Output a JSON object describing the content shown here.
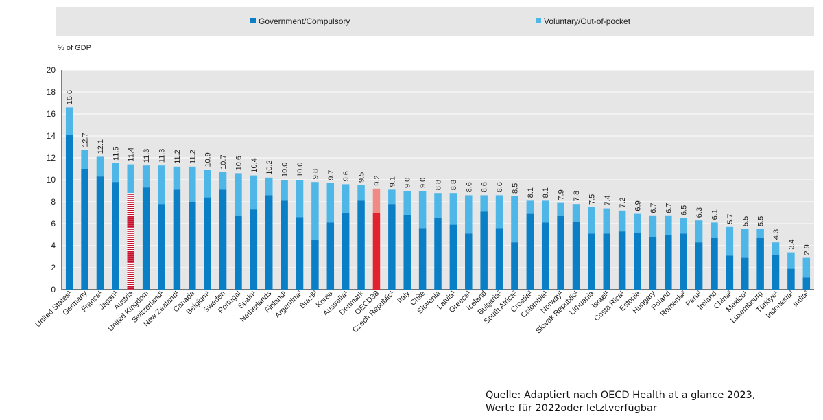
{
  "legend": {
    "government": "Government/Compulsory",
    "voluntary": "Voluntary/Out-of-pocket"
  },
  "colors": {
    "government": "#0b7fc6",
    "voluntary": "#4fb6e8",
    "highlight_government": "#e3222d",
    "highlight_voluntary": "#f08a83",
    "plot_background": "#e6e6e6"
  },
  "source_note": "Quelle: Adaptiert nach OECD Health at a glance 2023,\nWerte für 2022oder letztverfügbar",
  "chart_data": {
    "type": "bar",
    "stacked": true,
    "ylabel": "% of GDP",
    "ylim": [
      0,
      20
    ],
    "yticks": [
      0,
      2,
      4,
      6,
      8,
      10,
      12,
      14,
      16,
      18,
      20
    ],
    "grid": true,
    "legend_position": "top",
    "categories": [
      "United States¹",
      "Germany",
      "France¹",
      "Japan¹",
      "Austria",
      "United Kingdom",
      "Switzerland¹",
      "New Zealand¹",
      "Canada",
      "Belgium¹",
      "Sweden",
      "Portugal",
      "Spain¹",
      "Netherlands",
      "Finland¹",
      "Argentina³",
      "Brazil³",
      "Korea",
      "Australia¹",
      "Denmark",
      "OECD38",
      "Czech Republic¹",
      "Italy",
      "Chile",
      "Slovenia",
      "Latvia¹",
      "Greece¹",
      "Iceland",
      "Bulgaria²",
      "South Africa³",
      "Croatia²",
      "Colombia¹",
      "Norway¹",
      "Slovak Republic¹",
      "Lithuania",
      "Israel¹",
      "Costa Rica¹",
      "Estonia",
      "Hungary",
      "Poland",
      "Romania²",
      "Peru³",
      "Ireland",
      "China²",
      "Mexico¹",
      "Luxembourg",
      "Türkiye¹",
      "Indonesia³",
      "India³"
    ],
    "totals": [
      16.6,
      12.7,
      12.1,
      11.5,
      11.4,
      11.3,
      11.3,
      11.2,
      11.2,
      10.9,
      10.7,
      10.6,
      10.4,
      10.2,
      10.0,
      10.0,
      9.8,
      9.7,
      9.6,
      9.5,
      9.2,
      9.1,
      9.0,
      9.0,
      8.8,
      8.8,
      8.6,
      8.6,
      8.6,
      8.5,
      8.1,
      8.1,
      7.9,
      7.8,
      7.5,
      7.4,
      7.2,
      6.9,
      6.7,
      6.7,
      6.5,
      6.3,
      6.1,
      5.7,
      5.5,
      5.5,
      4.3,
      3.4,
      2.9
    ],
    "total_labels": [
      "16.6",
      "12.7",
      "12.1",
      "11.5",
      "11.4",
      "11.3",
      "11.3",
      "11.2",
      "11.2",
      "10.9",
      "10.7",
      "10.6",
      "10.4",
      "10.2",
      "10.0",
      "10.0",
      "9.8",
      "9.7",
      "9.6",
      "9.5",
      "9.2",
      "9.1",
      "9.0",
      "9.0",
      "8.8",
      "8.8",
      "8.6",
      "8.6",
      "8.6",
      "8.5",
      "8.1",
      "8.1",
      "7.9",
      "7.8",
      "7.5",
      "7.4",
      "7.2",
      "6.9",
      "6.7",
      "6.7",
      "6.5",
      "6.3",
      "6.1",
      "5.7",
      "5.5",
      "5.5",
      "4.3",
      "3.4",
      "2.9"
    ],
    "series": [
      {
        "name": "Government/Compulsory",
        "values": [
          14.1,
          11.0,
          10.3,
          9.8,
          8.8,
          9.3,
          7.8,
          9.1,
          8.0,
          8.4,
          9.1,
          6.7,
          7.3,
          8.6,
          8.1,
          6.6,
          4.5,
          6.1,
          7.0,
          8.1,
          7.0,
          7.8,
          6.8,
          5.6,
          6.5,
          5.9,
          5.1,
          7.1,
          5.6,
          4.3,
          6.9,
          6.1,
          6.7,
          6.2,
          5.1,
          5.1,
          5.3,
          5.2,
          4.8,
          5.0,
          5.1,
          4.3,
          4.7,
          3.1,
          2.9,
          4.7,
          3.2,
          1.9,
          1.1
        ]
      },
      {
        "name": "Voluntary/Out-of-pocket",
        "values": [
          2.5,
          1.7,
          1.8,
          1.7,
          2.6,
          2.0,
          3.5,
          2.1,
          3.2,
          2.5,
          1.6,
          3.9,
          3.1,
          1.6,
          1.9,
          3.4,
          5.3,
          3.6,
          2.6,
          1.4,
          2.2,
          1.3,
          2.2,
          3.4,
          2.3,
          2.9,
          3.5,
          1.5,
          3.0,
          4.2,
          1.2,
          2.0,
          1.2,
          1.6,
          2.4,
          2.3,
          1.9,
          1.7,
          1.9,
          1.7,
          1.4,
          2.0,
          1.4,
          2.6,
          2.6,
          0.8,
          1.1,
          1.5,
          1.8
        ]
      }
    ],
    "highlighted_categories": [
      "OECD38"
    ],
    "hatched_categories": [
      "Austria"
    ]
  }
}
